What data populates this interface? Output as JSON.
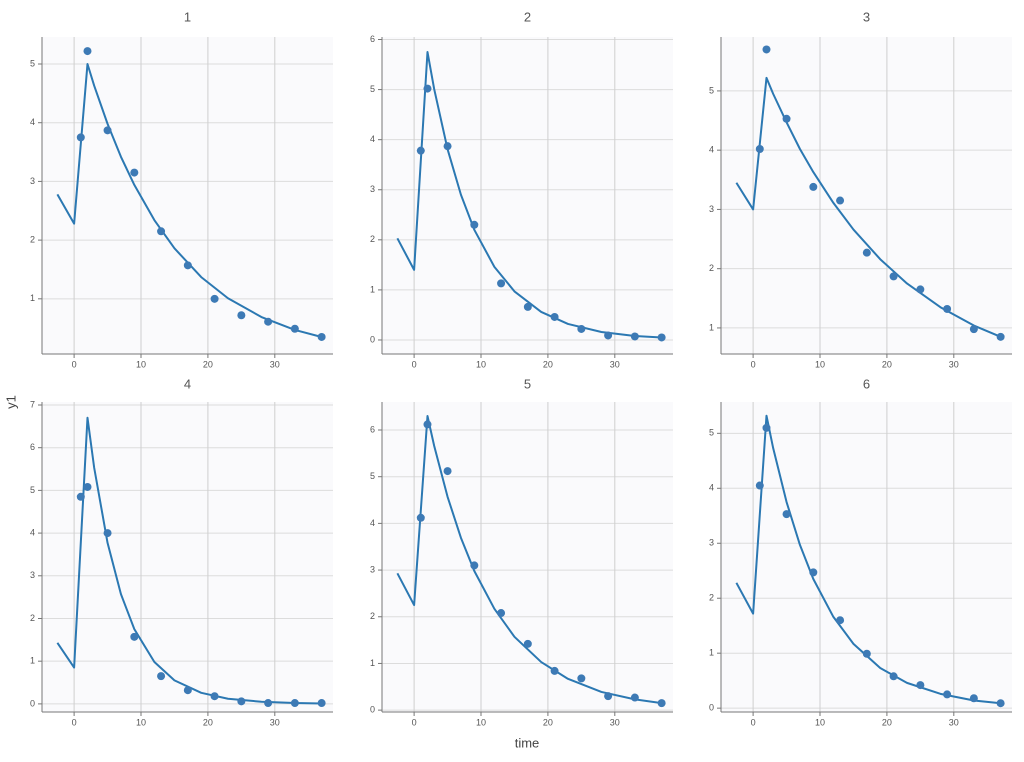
{
  "xlabel": "time",
  "ylabel": "y1",
  "chart_data": [
    {
      "type": "line",
      "title": "1",
      "xlim": [
        -4.8,
        38.7
      ],
      "xticks": [
        0,
        10,
        20,
        30
      ],
      "ylim": [
        0.06,
        5.46
      ],
      "yticks": [
        1,
        2,
        3,
        4,
        5
      ],
      "grid": true,
      "series": [
        {
          "style": "markers",
          "color": "#3d7ab5",
          "x": [
            1,
            2,
            5,
            9,
            13,
            17,
            21,
            25,
            29,
            33,
            37
          ],
          "values": [
            3.75,
            5.22,
            3.87,
            3.15,
            2.15,
            1.57,
            1.0,
            0.72,
            0.61,
            0.49,
            0.35
          ]
        },
        {
          "style": "line",
          "color": "#2b78b2",
          "x": [
            -2.5,
            0,
            2,
            3,
            5,
            7,
            9,
            12,
            15,
            19,
            23,
            28,
            33,
            37
          ],
          "values": [
            2.78,
            2.28,
            5.0,
            4.63,
            3.98,
            3.42,
            2.94,
            2.34,
            1.86,
            1.37,
            1.01,
            0.69,
            0.47,
            0.35
          ]
        }
      ]
    },
    {
      "type": "line",
      "title": "2",
      "xlim": [
        -4.8,
        38.7
      ],
      "xticks": [
        0,
        10,
        20,
        30
      ],
      "ylim": [
        -0.28,
        6.05
      ],
      "yticks": [
        0,
        1,
        2,
        3,
        4,
        5,
        6
      ],
      "grid": true,
      "series": [
        {
          "style": "markers",
          "color": "#3d7ab5",
          "x": [
            1,
            2,
            5,
            9,
            13,
            17,
            21,
            25,
            29,
            33,
            37
          ],
          "values": [
            3.78,
            5.02,
            3.87,
            2.3,
            1.13,
            0.66,
            0.46,
            0.22,
            0.09,
            0.07,
            0.05
          ]
        },
        {
          "style": "line",
          "color": "#2b78b2",
          "x": [
            -2.5,
            0,
            2,
            3,
            5,
            7,
            9,
            12,
            15,
            19,
            23,
            28,
            33,
            37
          ],
          "values": [
            2.03,
            1.4,
            5.75,
            5.01,
            3.81,
            2.9,
            2.2,
            1.46,
            0.97,
            0.56,
            0.32,
            0.16,
            0.08,
            0.05
          ]
        }
      ]
    },
    {
      "type": "line",
      "title": "3",
      "xlim": [
        -4.8,
        38.7
      ],
      "xticks": [
        0,
        10,
        20,
        30
      ],
      "ylim": [
        0.56,
        5.91
      ],
      "yticks": [
        1,
        2,
        3,
        4,
        5
      ],
      "grid": true,
      "series": [
        {
          "style": "markers",
          "color": "#3d7ab5",
          "x": [
            1,
            2,
            5,
            9,
            13,
            17,
            21,
            25,
            29,
            33,
            37
          ],
          "values": [
            4.02,
            5.7,
            4.53,
            3.38,
            3.15,
            2.27,
            1.87,
            1.65,
            1.32,
            0.98,
            0.85
          ]
        },
        {
          "style": "line",
          "color": "#2b78b2",
          "x": [
            -2.5,
            0,
            2,
            3,
            5,
            7,
            9,
            12,
            15,
            19,
            23,
            28,
            33,
            37
          ],
          "values": [
            3.45,
            3.0,
            5.22,
            4.95,
            4.47,
            4.02,
            3.63,
            3.11,
            2.66,
            2.16,
            1.75,
            1.35,
            1.04,
            0.85
          ]
        }
      ]
    },
    {
      "type": "line",
      "title": "4",
      "xlim": [
        -4.8,
        38.7
      ],
      "xticks": [
        0,
        10,
        20,
        30
      ],
      "ylim": [
        -0.19,
        7.07
      ],
      "yticks": [
        0,
        1,
        2,
        3,
        4,
        5,
        6,
        7
      ],
      "grid": true,
      "series": [
        {
          "style": "markers",
          "color": "#3d7ab5",
          "x": [
            1,
            2,
            5,
            9,
            13,
            17,
            21,
            25,
            29,
            33,
            37
          ],
          "values": [
            4.85,
            5.08,
            4.0,
            1.57,
            0.65,
            0.32,
            0.18,
            0.06,
            0.02,
            0.02,
            0.02
          ]
        },
        {
          "style": "line",
          "color": "#2b78b2",
          "x": [
            -2.5,
            0,
            2,
            3,
            5,
            7,
            9,
            12,
            15,
            19,
            23,
            28,
            33,
            37
          ],
          "values": [
            1.43,
            0.85,
            6.7,
            5.53,
            3.77,
            2.57,
            1.75,
            0.98,
            0.55,
            0.26,
            0.12,
            0.05,
            0.02,
            0.01
          ]
        }
      ]
    },
    {
      "type": "line",
      "title": "5",
      "xlim": [
        -4.8,
        38.7
      ],
      "xticks": [
        0,
        10,
        20,
        30
      ],
      "ylim": [
        -0.04,
        6.6
      ],
      "yticks": [
        0,
        1,
        2,
        3,
        4,
        5,
        6
      ],
      "grid": true,
      "series": [
        {
          "style": "markers",
          "color": "#3d7ab5",
          "x": [
            1,
            2,
            5,
            9,
            13,
            17,
            21,
            25,
            29,
            33,
            37
          ],
          "values": [
            4.12,
            6.12,
            5.12,
            3.1,
            2.08,
            1.42,
            0.84,
            0.68,
            0.3,
            0.27,
            0.15
          ]
        },
        {
          "style": "line",
          "color": "#2b78b2",
          "x": [
            -2.5,
            0,
            2,
            3,
            5,
            7,
            9,
            12,
            15,
            19,
            23,
            28,
            33,
            37
          ],
          "values": [
            2.93,
            2.25,
            6.3,
            5.66,
            4.57,
            3.69,
            2.98,
            2.17,
            1.57,
            1.03,
            0.67,
            0.39,
            0.23,
            0.15
          ]
        }
      ]
    },
    {
      "type": "line",
      "title": "6",
      "xlim": [
        -4.8,
        38.7
      ],
      "xticks": [
        0,
        10,
        20,
        30
      ],
      "ylim": [
        -0.07,
        5.57
      ],
      "yticks": [
        0,
        1,
        2,
        3,
        4,
        5
      ],
      "grid": true,
      "series": [
        {
          "style": "markers",
          "color": "#3d7ab5",
          "x": [
            1,
            2,
            5,
            9,
            13,
            17,
            21,
            25,
            29,
            33,
            37
          ],
          "values": [
            4.05,
            5.1,
            3.53,
            2.47,
            1.6,
            0.99,
            0.58,
            0.42,
            0.25,
            0.18,
            0.09
          ]
        },
        {
          "style": "line",
          "color": "#2b78b2",
          "x": [
            -2.5,
            0,
            2,
            3,
            5,
            7,
            9,
            12,
            15,
            19,
            23,
            28,
            33,
            37
          ],
          "values": [
            2.28,
            1.72,
            5.32,
            4.73,
            3.75,
            2.97,
            2.35,
            1.66,
            1.17,
            0.73,
            0.46,
            0.26,
            0.14,
            0.09
          ]
        }
      ]
    }
  ]
}
